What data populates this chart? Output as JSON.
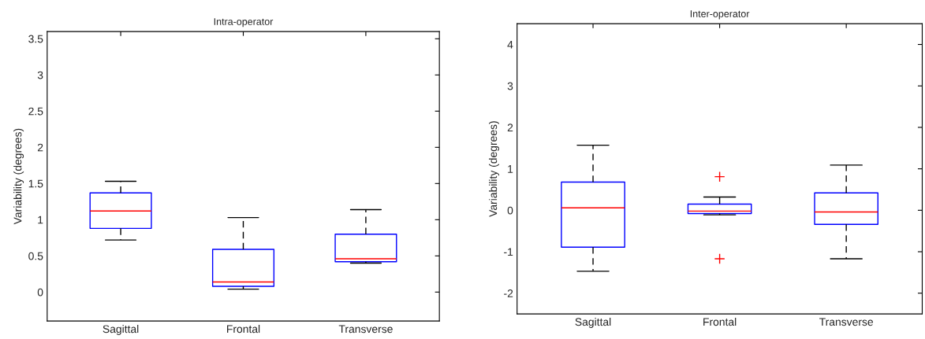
{
  "chart_data": [
    {
      "type": "box",
      "title": "Intra-operator",
      "ylabel": "Variability (degrees)",
      "categories": [
        "Sagittal",
        "Frontal",
        "Transverse"
      ],
      "ylim": [
        -0.4,
        3.6
      ],
      "yticks": [
        0,
        0.5,
        1,
        1.5,
        2,
        2.5,
        3,
        3.5
      ],
      "grid": false,
      "series": [
        {
          "color": "#0000ff",
          "boxes": [
            {
              "low": 0.72,
              "q1": 0.88,
              "median": 1.12,
              "q3": 1.37,
              "high": 1.53
            },
            {
              "low": 0.04,
              "q1": 0.08,
              "median": 0.14,
              "q3": 0.59,
              "high": 1.03
            },
            {
              "low": 0.4,
              "q1": 0.42,
              "median": 0.46,
              "q3": 0.8,
              "high": 1.14
            }
          ]
        }
      ]
    },
    {
      "type": "box",
      "title": "Inter-operator",
      "ylabel": "Variability (degrees)",
      "categories": [
        "Sagittal",
        "Frontal",
        "Transverse"
      ],
      "ylim": [
        -2.5,
        4.5
      ],
      "yticks": [
        -2,
        -1,
        0,
        1,
        2,
        3,
        4
      ],
      "grid": false,
      "series": [
        {
          "color": "#0000ff",
          "boxes": [
            {
              "low": -1.47,
              "q1": -0.89,
              "median": 0.06,
              "q3": 0.68,
              "high": 1.57
            },
            {
              "low": -0.11,
              "q1": -0.08,
              "median": -0.02,
              "q3": 0.15,
              "high": 0.32,
              "outliers": [
                0.81,
                -1.17
              ]
            },
            {
              "low": -1.17,
              "q1": -0.34,
              "median": -0.04,
              "q3": 0.42,
              "high": 1.09
            }
          ]
        }
      ]
    }
  ]
}
